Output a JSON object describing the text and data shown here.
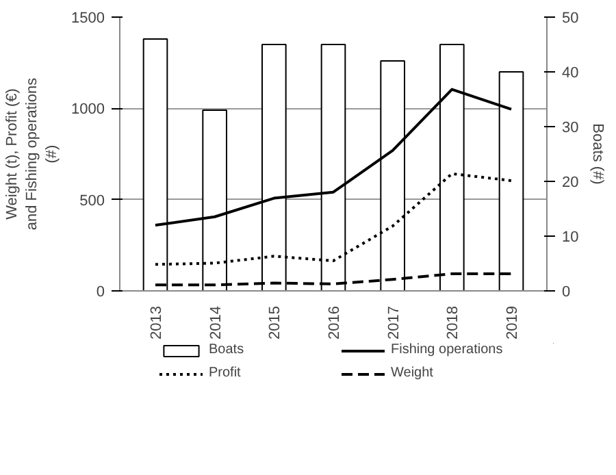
{
  "chart_data": {
    "type": "line",
    "categories": [
      "2013",
      "2014",
      "2015",
      "2016",
      "2017",
      "2018",
      "2019"
    ],
    "ylabel": "Weight (t), Profit (€) and Fishing operations (#)",
    "y2label": "Boats (#)",
    "ylim": [
      0,
      1500
    ],
    "yticks": [
      0,
      500,
      1000,
      1500
    ],
    "y2lim": [
      0,
      50
    ],
    "y2ticks": [
      0,
      10,
      20,
      30,
      40,
      50
    ],
    "grid": "y",
    "legend": "bottom",
    "series": [
      {
        "name": "Boats",
        "type": "bar",
        "axis": "y2",
        "color": "#ffffff",
        "values": [
          46,
          33,
          45,
          45,
          42,
          45,
          40
        ]
      },
      {
        "name": "Fishing operations",
        "line_style": "solid",
        "color": "#000000",
        "values": [
          360,
          406,
          508,
          541,
          769,
          1104,
          995
        ]
      },
      {
        "name": "Profit",
        "line_style": "dotted",
        "color": "#000000",
        "values": [
          145,
          152,
          190,
          165,
          355,
          642,
          604
        ]
      },
      {
        "name": "Weight",
        "line_style": "dashed",
        "color": "#000000",
        "values": [
          33,
          33,
          43,
          38,
          63,
          94,
          94
        ]
      }
    ]
  }
}
